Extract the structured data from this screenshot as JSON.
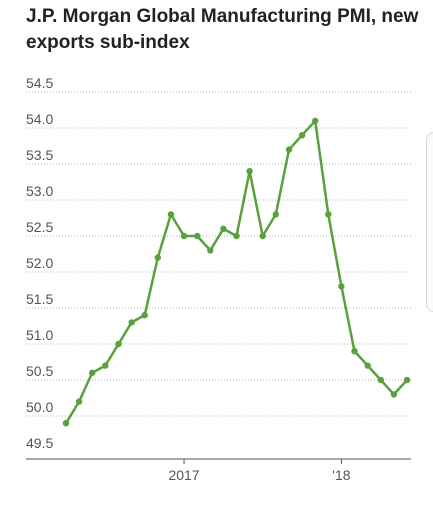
{
  "chart_data": {
    "type": "line",
    "title": "J.P. Morgan Global Manufacturing PMI, new exports sub-index",
    "xlabel": "",
    "ylabel": "",
    "ylim": [
      49.5,
      54.5
    ],
    "yticks": [
      "49.5",
      "50.0",
      "50.5",
      "51.0",
      "51.5",
      "52.0",
      "52.5",
      "53.0",
      "53.5",
      "54.0",
      "54.5"
    ],
    "xticks": [
      {
        "label": "2017",
        "at": "2017-01"
      },
      {
        "label": "'18",
        "at": "2018-01"
      }
    ],
    "grid": true,
    "color": "#5aa03c",
    "series": [
      {
        "x": [
          "2016-04",
          "2016-05",
          "2016-06",
          "2016-07",
          "2016-08",
          "2016-09",
          "2016-10",
          "2016-11",
          "2016-12",
          "2017-01",
          "2017-02",
          "2017-03",
          "2017-04",
          "2017-05",
          "2017-06",
          "2017-07",
          "2017-08",
          "2017-09",
          "2017-10",
          "2017-11",
          "2017-12",
          "2018-01",
          "2018-02",
          "2018-03",
          "2018-04",
          "2018-05",
          "2018-06"
        ],
        "values": [
          49.9,
          50.2,
          50.6,
          50.7,
          51.0,
          51.3,
          51.4,
          52.2,
          52.8,
          52.5,
          52.5,
          52.3,
          52.6,
          52.5,
          53.4,
          52.5,
          52.8,
          53.7,
          53.9,
          54.1,
          52.8,
          51.8,
          50.9,
          50.7,
          50.5,
          50.3,
          50.5
        ]
      }
    ]
  }
}
